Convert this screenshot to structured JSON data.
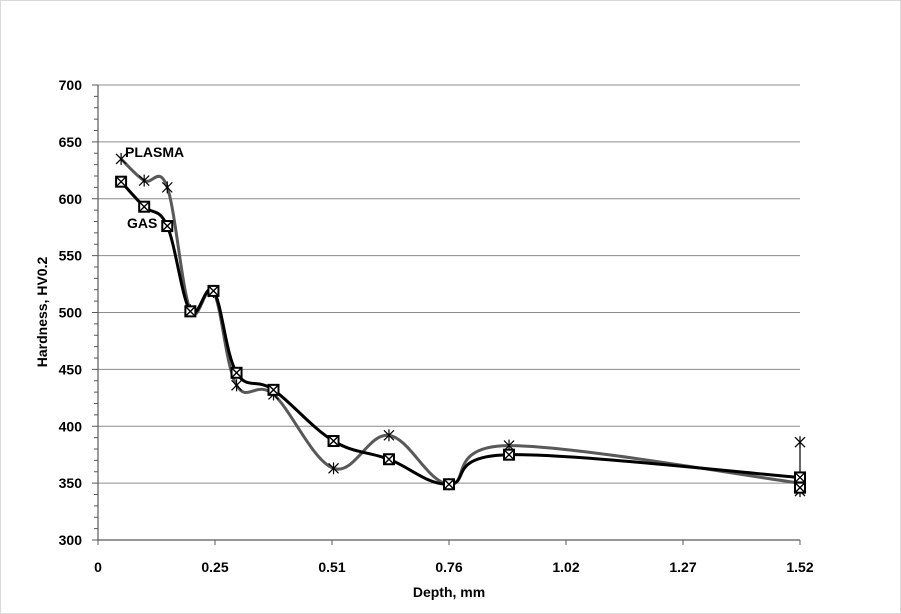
{
  "chart_data": {
    "type": "line",
    "xlabel": "Depth, mm",
    "ylabel": "Hardness, HV0.2",
    "xlim": [
      0,
      1.52
    ],
    "ylim": [
      300,
      700
    ],
    "x_ticks": [
      "0",
      "0.25",
      "0.51",
      "0.76",
      "1.02",
      "1.27",
      "1.52"
    ],
    "y_ticks": [
      "300",
      "350",
      "400",
      "450",
      "500",
      "550",
      "600",
      "650",
      "700"
    ],
    "grid": "horizontal",
    "smoothed": true,
    "series": [
      {
        "name": "PLASMA",
        "marker": "asterisk",
        "color": "#595959",
        "x": [
          0.05,
          0.1,
          0.15,
          0.2,
          0.25,
          0.3,
          0.38,
          0.51,
          0.63,
          0.76,
          0.89,
          1.52
        ],
        "y": [
          635,
          616,
          610,
          502,
          518,
          436,
          428,
          363,
          392,
          349,
          383,
          350
        ],
        "extra_points": [
          {
            "x": 1.52,
            "y": 386
          },
          {
            "x": 1.52,
            "y": 343
          }
        ]
      },
      {
        "name": "GAS",
        "marker": "crossed-square",
        "color": "#000000",
        "x": [
          0.05,
          0.1,
          0.15,
          0.2,
          0.25,
          0.3,
          0.38,
          0.51,
          0.63,
          0.76,
          0.89,
          1.52
        ],
        "y": [
          615,
          593,
          576,
          501,
          519,
          447,
          432,
          387,
          371,
          349,
          375,
          355
        ],
        "extra_points": [
          {
            "x": 1.52,
            "y": 346
          }
        ]
      }
    ]
  }
}
